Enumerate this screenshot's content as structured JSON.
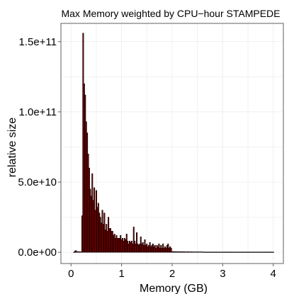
{
  "chart_data": {
    "type": "bar",
    "title": "Max Memory weighted by CPU−hour  STAMPEDE",
    "xlabel": "Memory (GB)",
    "ylabel": "relative size",
    "xlim": [
      -0.2,
      4.2
    ],
    "ylim": [
      -8000000000.0,
      163000000000.0
    ],
    "x_ticks": [
      0,
      1,
      2,
      3,
      4
    ],
    "x_tick_labels": [
      "0",
      "1",
      "2",
      "3",
      "4"
    ],
    "y_ticks": [
      0,
      50000000000.0,
      100000000000.0,
      150000000000.0
    ],
    "y_tick_labels": [
      "0.0e+00",
      "5.0e+10",
      "1.0e+11",
      "1.5e+11"
    ],
    "grid": true,
    "bar_width_gb": 0.02,
    "bar_color": "#8b0000",
    "bar_edge_color": "#000000",
    "x": [
      0.06,
      0.08,
      0.1,
      0.12,
      0.14,
      0.16,
      0.18,
      0.2,
      0.22,
      0.24,
      0.26,
      0.28,
      0.3,
      0.32,
      0.34,
      0.36,
      0.38,
      0.4,
      0.42,
      0.44,
      0.46,
      0.48,
      0.5,
      0.52,
      0.54,
      0.56,
      0.58,
      0.6,
      0.62,
      0.64,
      0.66,
      0.68,
      0.7,
      0.72,
      0.74,
      0.76,
      0.78,
      0.8,
      0.82,
      0.84,
      0.86,
      0.88,
      0.9,
      0.92,
      0.94,
      0.96,
      0.98,
      1.0,
      1.02,
      1.04,
      1.06,
      1.08,
      1.1,
      1.12,
      1.14,
      1.16,
      1.18,
      1.2,
      1.22,
      1.24,
      1.26,
      1.28,
      1.3,
      1.32,
      1.34,
      1.36,
      1.38,
      1.4,
      1.42,
      1.44,
      1.46,
      1.48,
      1.5,
      1.52,
      1.54,
      1.56,
      1.58,
      1.6,
      1.62,
      1.64,
      1.66,
      1.68,
      1.7,
      1.72,
      1.74,
      1.76,
      1.78,
      1.8,
      1.82,
      1.84,
      1.86,
      1.88,
      1.9,
      1.92,
      1.94,
      1.96,
      1.98,
      2.0,
      2.02,
      2.04,
      2.06,
      2.08,
      2.1,
      2.12,
      2.14,
      2.16,
      2.18,
      2.2,
      2.22,
      2.24,
      2.26,
      2.28,
      2.3,
      2.32,
      2.34,
      2.36,
      2.38,
      2.4,
      2.42,
      2.44,
      2.46,
      2.48,
      2.5,
      2.52,
      2.54,
      2.56,
      2.58,
      2.6,
      2.62,
      2.64,
      2.66,
      2.68,
      2.7,
      2.72,
      2.74,
      2.76,
      2.78,
      2.8,
      2.82,
      2.84,
      2.86,
      2.88,
      2.9,
      2.92,
      2.94,
      2.96,
      2.98,
      3.0,
      3.02,
      3.04,
      3.06,
      3.08,
      3.1,
      3.12,
      3.14,
      3.16,
      3.18,
      3.2,
      3.22,
      3.24,
      3.26,
      3.28,
      3.3,
      3.32,
      3.34,
      3.36,
      3.38,
      3.4,
      3.42,
      3.44,
      3.46,
      3.48,
      3.5,
      3.52,
      3.54,
      3.56,
      3.58,
      3.6,
      3.62,
      3.64,
      3.66,
      3.68,
      3.7,
      3.72,
      3.74,
      3.76,
      3.78,
      3.8,
      3.82,
      3.84,
      3.86,
      3.88,
      3.9,
      3.92,
      3.94,
      3.96,
      3.98,
      4.0
    ],
    "values": [
      100000000.0,
      1000000000.0,
      1200000000.0,
      500000000.0,
      400000000.0,
      500000000.0,
      300000000.0,
      400000000.0,
      26000000000.0,
      156000000000.0,
      120000000000.0,
      112000000000.0,
      93000000000.0,
      85000000000.0,
      70000000000.0,
      60000000000.0,
      45000000000.0,
      40000000000.0,
      56000000000.0,
      37000000000.0,
      46000000000.0,
      30000000000.0,
      44000000000.0,
      32000000000.0,
      35000000000.0,
      28000000000.0,
      25000000000.0,
      21000000000.0,
      30000000000.0,
      20000000000.0,
      28000000000.0,
      16000000000.0,
      20000000000.0,
      15000000000.0,
      25000000000.0,
      17000000000.0,
      17000000000.0,
      15000000000.0,
      15000000000.0,
      12000000000.0,
      13000000000.0,
      10000000000.0,
      12000000000.0,
      10000000000.0,
      10000000000.0,
      10000000000.0,
      12000000000.0,
      9000000000.0,
      10000000000.0,
      8000000000.0,
      10000000000.0,
      9000000000.0,
      13000000000.0,
      8000000000.0,
      6000000000.0,
      8000000000.0,
      7000000000.0,
      8000000000.0,
      6000000000.0,
      18000000000.0,
      8000000000.0,
      6000000000.0,
      14000000000.0,
      6000000000.0,
      5000000000.0,
      6000000000.0,
      11000000000.0,
      6000000000.0,
      7000000000.0,
      5000000000.0,
      9000000000.0,
      5000000000.0,
      6000000000.0,
      4000000000.0,
      5000000000.0,
      7000000000.0,
      4000000000.0,
      5000000000.0,
      6000000000.0,
      4000000000.0,
      5000000000.0,
      3000000000.0,
      5000000000.0,
      4000000000.0,
      6000000000.0,
      3000000000.0,
      5000000000.0,
      3000000000.0,
      6000000000.0,
      3000000000.0,
      4000000000.0,
      3000000000.0,
      5000000000.0,
      6000000000.0,
      3000000000.0,
      4000000000.0,
      3000000000.0,
      500000000.0,
      600000000.0,
      400000000.0,
      500000000.0,
      500000000.0,
      400000000.0,
      500000000.0,
      400000000.0,
      400000000.0,
      500000000.0,
      400000000.0,
      400000000.0,
      400000000.0,
      400000000.0,
      300000000.0,
      400000000.0,
      400000000.0,
      300000000.0,
      300000000.0,
      400000000.0,
      300000000.0,
      300000000.0,
      300000000.0,
      300000000.0,
      300000000.0,
      300000000.0,
      300000000.0,
      300000000.0,
      300000000.0,
      300000000.0,
      300000000.0,
      200000000.0,
      200000000.0,
      200000000.0,
      200000000.0,
      200000000.0,
      200000000.0,
      200000000.0,
      200000000.0,
      200000000.0,
      200000000.0,
      200000000.0,
      200000000.0,
      200000000.0,
      200000000.0,
      200000000.0,
      200000000.0,
      200000000.0,
      200000000.0,
      200000000.0,
      200000000.0,
      200000000.0,
      200000000.0,
      200000000.0,
      200000000.0,
      200000000.0,
      200000000.0,
      200000000.0,
      200000000.0,
      200000000.0,
      200000000.0,
      200000000.0,
      200000000.0,
      200000000.0,
      200000000.0,
      200000000.0,
      200000000.0,
      200000000.0,
      200000000.0,
      200000000.0,
      200000000.0,
      200000000.0,
      200000000.0,
      200000000.0,
      200000000.0,
      200000000.0,
      200000000.0,
      200000000.0,
      200000000.0,
      200000000.0,
      200000000.0,
      200000000.0,
      200000000.0,
      200000000.0,
      200000000.0,
      200000000.0,
      200000000.0,
      200000000.0,
      200000000.0,
      200000000.0,
      200000000.0,
      200000000.0,
      200000000.0,
      200000000.0,
      200000000.0,
      200000000.0,
      200000000.0,
      200000000.0,
      200000000.0,
      200000000.0,
      200000000.0
    ]
  }
}
